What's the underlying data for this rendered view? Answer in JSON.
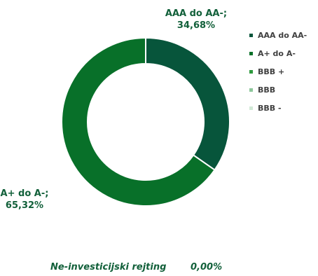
{
  "chart_data": {
    "type": "pie",
    "variant": "donut",
    "series": [
      {
        "name": "AAA do AA-",
        "value": 34.68,
        "color": "#07553B"
      },
      {
        "name": "A+ do A-",
        "value": 65.32,
        "color": "#087029"
      },
      {
        "name": "BBB +",
        "value": 0,
        "color": "#2E9A3E"
      },
      {
        "name": "BBB",
        "value": 0,
        "color": "#8DC79B"
      },
      {
        "name": "BBB -",
        "value": 0,
        "color": "#D1E9D6"
      }
    ],
    "data_labels": [
      {
        "series": "AAA do AA-",
        "line1": "AAA do AA-;",
        "line2": "34,68%"
      },
      {
        "series": "A+ do A-",
        "line1": "A+ do A-;",
        "line2": "65,32%"
      }
    ],
    "legend_position": "right",
    "footer": {
      "label": "Ne-investicijski rejting",
      "value": "0,00%"
    }
  }
}
